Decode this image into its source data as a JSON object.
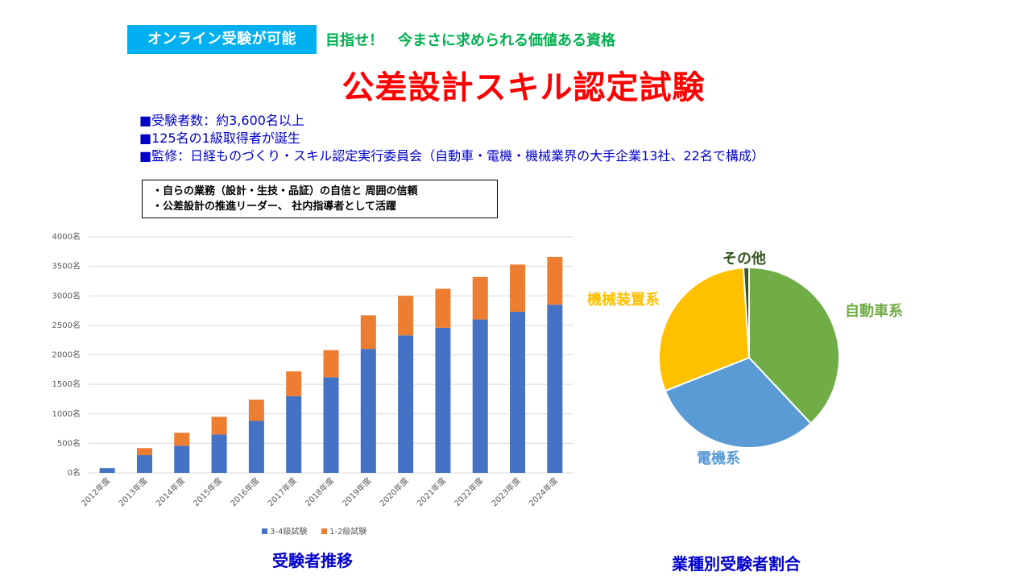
{
  "header": {
    "badge": "オンライン受験が可能",
    "tagline": "目指せ！　今まさに求められる価値ある資格",
    "title": "公差設計スキル認定試験"
  },
  "bullets": [
    "■受験者数：約3,600名以上",
    "■125名の1級取得者が誕生",
    "■監修：日経ものづくり・スキル認定実行委員会（自動車・電機・機械業界の大手企業13社、22名で構成）"
  ],
  "note_box": [
    "・自らの業務（設計・生技・品証）の自信と 周囲の信頼",
    "・公差設計の推進リーダー、 社内指導者として活躍"
  ],
  "captions": {
    "bar": "受験者推移",
    "pie": "業種別受験者割合"
  },
  "chart_data": [
    {
      "type": "bar",
      "stacked": true,
      "categories": [
        "2012年度",
        "2013年度",
        "2014年度",
        "2015年度",
        "2016年度",
        "2017年度",
        "2018年度",
        "2019年度",
        "2020年度",
        "2021年度",
        "2022年度",
        "2023年度",
        "2024年度"
      ],
      "series": [
        {
          "name": "3-4級試験",
          "color": "#4472c4",
          "values": [
            80,
            300,
            460,
            650,
            880,
            1300,
            1620,
            2100,
            2330,
            2460,
            2600,
            2730,
            2850
          ]
        },
        {
          "name": "1-2級試験",
          "color": "#ed7d31",
          "values": [
            0,
            120,
            220,
            300,
            360,
            420,
            460,
            570,
            670,
            660,
            720,
            800,
            810
          ]
        }
      ],
      "ylim": [
        0,
        4000
      ],
      "yticks": [
        0,
        500,
        1000,
        1500,
        2000,
        2500,
        3000,
        3500,
        4000
      ],
      "ytick_labels": [
        "0名",
        "500名",
        "1000名",
        "1500名",
        "2000名",
        "2500名",
        "3000名",
        "3500名",
        "4000名"
      ],
      "grid": true,
      "legend": "bottom"
    },
    {
      "type": "pie",
      "slices": [
        {
          "label": "自動車系",
          "value": 38,
          "color": "#70ad47"
        },
        {
          "label": "電機系",
          "value": 31,
          "color": "#5b9bd5"
        },
        {
          "label": "機械装置系",
          "value": 30,
          "color": "#ffc000"
        },
        {
          "label": "その他",
          "value": 1,
          "color": "#375623"
        }
      ],
      "label_colors": [
        "#70ad47",
        "#5b9bd5",
        "#ffc000",
        "#375623"
      ]
    }
  ]
}
